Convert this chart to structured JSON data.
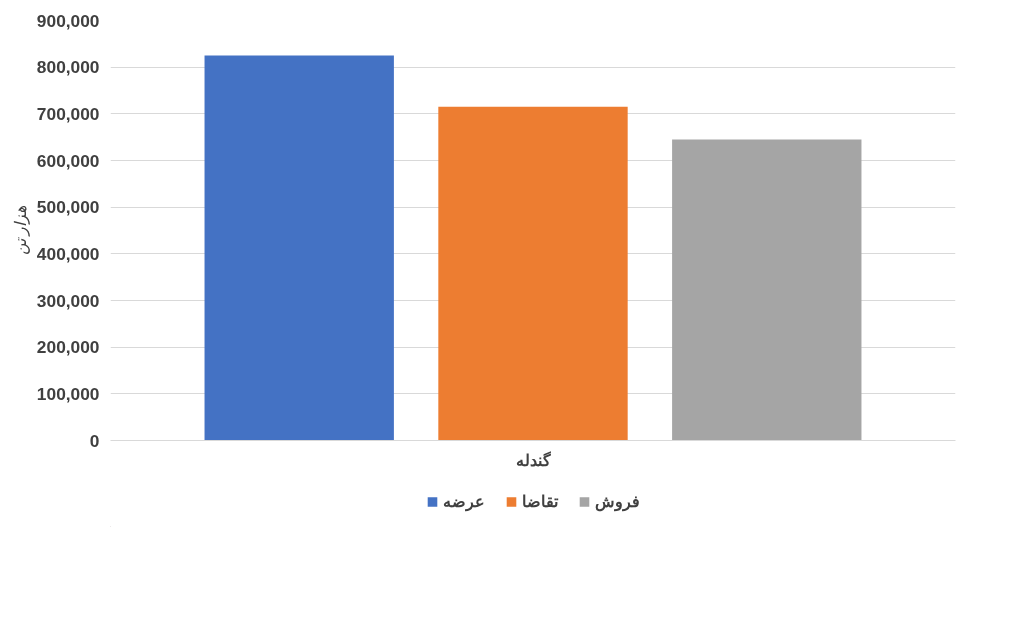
{
  "chart_data": {
    "type": "bar",
    "categories": [
      "گندله"
    ],
    "ylabel": "هزار تن",
    "series": [
      {
        "name": "عرضه",
        "color": "#4472c4",
        "values": [
          825000
        ]
      },
      {
        "name": "تقاضا",
        "color": "#ed7d31",
        "values": [
          715000
        ]
      },
      {
        "name": "فروش",
        "color": "#a5a5a5",
        "values": [
          645000
        ]
      }
    ],
    "ylim": [
      0,
      900000
    ],
    "yticks": [
      {
        "value": 0,
        "label": "0"
      },
      {
        "value": 100000,
        "label": "100,000"
      },
      {
        "value": 200000,
        "label": "200,000"
      },
      {
        "value": 300000,
        "label": "300,000"
      },
      {
        "value": 400000,
        "label": "400,000"
      },
      {
        "value": 500000,
        "label": "500,000"
      },
      {
        "value": 600000,
        "label": "600,000"
      },
      {
        "value": 700000,
        "label": "700,000"
      },
      {
        "value": 800000,
        "label": "800,000"
      },
      {
        "value": 900000,
        "label": "900,000"
      }
    ],
    "grid": "y",
    "legend": "bottom"
  }
}
